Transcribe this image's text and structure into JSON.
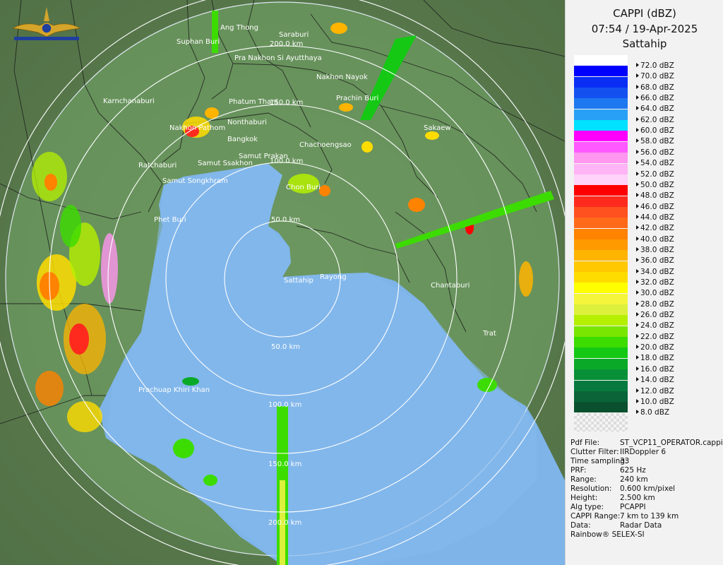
{
  "header": {
    "product": "CAPPI (dBZ)",
    "datetime": "07:54 / 19-Apr-2025",
    "site": "Sattahip"
  },
  "legend": [
    {
      "label": "72.0 dBZ",
      "color": "#ffffff"
    },
    {
      "label": "70.0 dBZ",
      "color": "#0000ff"
    },
    {
      "label": "68.0 dBZ",
      "color": "#0a2df5"
    },
    {
      "label": "66.0 dBZ",
      "color": "#1450f0"
    },
    {
      "label": "64.0 dBZ",
      "color": "#1e78f0"
    },
    {
      "label": "62.0 dBZ",
      "color": "#28a0f5"
    },
    {
      "label": "60.0 dBZ",
      "color": "#00e0ff"
    },
    {
      "label": "58.0 dBZ",
      "color": "#ff00ff"
    },
    {
      "label": "56.0 dBZ",
      "color": "#ff5aff"
    },
    {
      "label": "54.0 dBZ",
      "color": "#ff96f0"
    },
    {
      "label": "52.0 dBZ",
      "color": "#ffb4f5"
    },
    {
      "label": "50.0 dBZ",
      "color": "#ffd2fa"
    },
    {
      "label": "48.0 dBZ",
      "color": "#ff0000"
    },
    {
      "label": "46.0 dBZ",
      "color": "#ff2a1e"
    },
    {
      "label": "44.0 dBZ",
      "color": "#ff5020"
    },
    {
      "label": "42.0 dBZ",
      "color": "#ff6a1a"
    },
    {
      "label": "40.0 dBZ",
      "color": "#ff8200"
    },
    {
      "label": "38.0 dBZ",
      "color": "#ff9a00"
    },
    {
      "label": "36.0 dBZ",
      "color": "#ffb400"
    },
    {
      "label": "34.0 dBZ",
      "color": "#ffc800"
    },
    {
      "label": "32.0 dBZ",
      "color": "#ffdc00"
    },
    {
      "label": "30.0 dBZ",
      "color": "#ffff00"
    },
    {
      "label": "28.0 dBZ",
      "color": "#f5f53c"
    },
    {
      "label": "26.0 dBZ",
      "color": "#dcf03c"
    },
    {
      "label": "24.0 dBZ",
      "color": "#b4f000"
    },
    {
      "label": "22.0 dBZ",
      "color": "#78e600"
    },
    {
      "label": "20.0 dBZ",
      "color": "#3cdc00"
    },
    {
      "label": "18.0 dBZ",
      "color": "#14c814"
    },
    {
      "label": "16.0 dBZ",
      "color": "#0aaa28"
    },
    {
      "label": "14.0 dBZ",
      "color": "#089038"
    },
    {
      "label": "12.0 dBZ",
      "color": "#087a40"
    },
    {
      "label": "10.0 dBZ",
      "color": "#0a6438"
    },
    {
      "label": "8.0 dBZ",
      "color": "#0a502e"
    }
  ],
  "meta": [
    {
      "key": "Pdf File:",
      "value": "ST_VCP11_OPERATOR.cappi"
    },
    {
      "key": "Clutter Filter:",
      "value": "IIRDoppler 6"
    },
    {
      "key": "Time sampling:",
      "value": "33"
    },
    {
      "key": "PRF:",
      "value": "625 Hz"
    },
    {
      "key": "Range:",
      "value": "240 km"
    },
    {
      "key": "Resolution:",
      "value": "0.600 km/pixel"
    },
    {
      "key": "Height:",
      "value": "2.500 km"
    },
    {
      "key": "Alg type:",
      "value": "PCAPPI"
    },
    {
      "key": "CAPPI Range:",
      "value": "7 km to 139 km"
    },
    {
      "key": "Data:",
      "value": "Radar Data"
    }
  ],
  "footer": "Rainbow® SELEX-SI",
  "rings": [
    "50.0 km",
    "100.0 km",
    "150.0 km",
    "200.0 km"
  ],
  "cities": [
    {
      "name": "Ang Thong"
    },
    {
      "name": "Saraburi"
    },
    {
      "name": "Suphan Buri"
    },
    {
      "name": "Pra Nakhon Si Ayutthaya"
    },
    {
      "name": "Nakhon Nayok"
    },
    {
      "name": "Prachin Buri"
    },
    {
      "name": "Karnchanaburi"
    },
    {
      "name": "Phatum Thani"
    },
    {
      "name": "Nonthaburi"
    },
    {
      "name": "Nakhon Pathom"
    },
    {
      "name": "Bangkok"
    },
    {
      "name": "Sakaew"
    },
    {
      "name": "Chachoengsao"
    },
    {
      "name": "Samut Prakan"
    },
    {
      "name": "Ratchaburi"
    },
    {
      "name": "Samut Ssakhon"
    },
    {
      "name": "Samut Songkhram"
    },
    {
      "name": "Chon Buri"
    },
    {
      "name": "Phet Buri"
    },
    {
      "name": "Sattahip"
    },
    {
      "name": "Rayong"
    },
    {
      "name": "Chantaburi"
    },
    {
      "name": "Trat"
    },
    {
      "name": "Prachuap Khiri Khan"
    }
  ],
  "colors": {
    "sea": "#7eb4e8",
    "land": "#5f8a52",
    "range_fill": "#8fb8e0"
  }
}
